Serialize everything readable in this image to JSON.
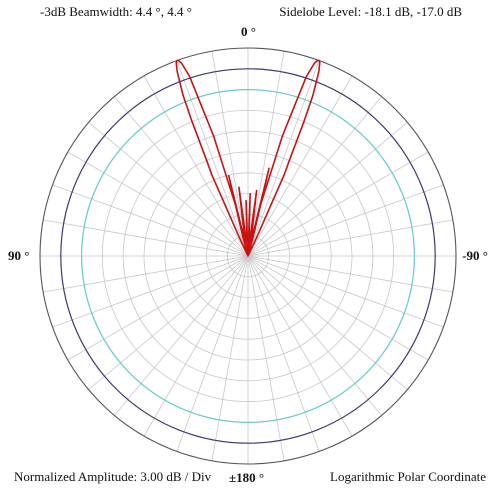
{
  "header": {
    "beamwidth": "-3dB Beamwidth: 4.4 °, 4.4 °",
    "sidelobe": "Sidelobe Level: -18.1 dB, -17.0 dB"
  },
  "footer": {
    "amplitude": "Normalized Amplitude: 3.00 dB / Div",
    "coordinate": "Logarithmic Polar Coordinate"
  },
  "angle_labels": {
    "top": "0 °",
    "left": "90 °",
    "right": "-90 °",
    "bottom": "±180 °"
  },
  "chart_data": {
    "type": "polar",
    "scale": "logarithmic",
    "angle_unit": "degrees",
    "db_per_division": 3.0,
    "radial_divisions": 10,
    "angle_step_deg": 10,
    "grid": true,
    "reference_circles": [
      {
        "level_db": -3,
        "color": "#3b3b7a"
      },
      {
        "level_db": -6,
        "color": "#66cccc"
      }
    ],
    "series": [
      {
        "color": "#cc1111",
        "points": [
          {
            "angle": -18.0,
            "db": -2.8
          },
          {
            "angle": -19.0,
            "db": -0.6
          },
          {
            "angle": -19.6,
            "db": -0.05
          },
          {
            "angle": -20.0,
            "db": 0.0
          },
          {
            "angle": -20.4,
            "db": -0.3
          },
          {
            "angle": -21.0,
            "db": -1.5
          },
          {
            "angle": -22.0,
            "db": -5.0
          },
          {
            "angle": -22.6,
            "db": -9.0
          },
          {
            "angle": -23.4,
            "db": -15.0
          },
          {
            "angle": -24.0,
            "db": -17.0
          },
          {
            "angle": -25.0,
            "db": -27.0
          },
          {
            "angle": -26.0,
            "db": -30.0
          },
          {
            "angle": -20.0,
            "db": -30.0
          },
          {
            "angle": -15.0,
            "db": -27.0
          },
          {
            "angle": -13.5,
            "db": -17.0
          },
          {
            "angle": -12.0,
            "db": -28.0
          },
          {
            "angle": -9.0,
            "db": -26.0
          },
          {
            "angle": -7.5,
            "db": -20.5
          },
          {
            "angle": -6.0,
            "db": -28.0
          },
          {
            "angle": -3.0,
            "db": -27.0
          },
          {
            "angle": -2.0,
            "db": -21.0
          },
          {
            "angle": -1.0,
            "db": -30.0
          },
          {
            "angle": 0.0,
            "db": -30.0
          },
          {
            "angle": 1.0,
            "db": -30.0
          },
          {
            "angle": 2.0,
            "db": -22.0
          },
          {
            "angle": 3.0,
            "db": -27.0
          },
          {
            "angle": 6.0,
            "db": -28.0
          },
          {
            "angle": 7.5,
            "db": -20.0
          },
          {
            "angle": 9.0,
            "db": -26.0
          },
          {
            "angle": 12.0,
            "db": -28.0
          },
          {
            "angle": 13.5,
            "db": -18.1
          },
          {
            "angle": 15.0,
            "db": -27.0
          },
          {
            "angle": 20.0,
            "db": -30.0
          },
          {
            "angle": 26.0,
            "db": -30.0
          },
          {
            "angle": 25.0,
            "db": -27.0
          },
          {
            "angle": 24.0,
            "db": -17.0
          },
          {
            "angle": 23.4,
            "db": -15.0
          },
          {
            "angle": 22.6,
            "db": -9.0
          },
          {
            "angle": 22.0,
            "db": -5.0
          },
          {
            "angle": 21.0,
            "db": -1.5
          },
          {
            "angle": 20.4,
            "db": -0.3
          },
          {
            "angle": 20.0,
            "db": 0.0
          },
          {
            "angle": 19.6,
            "db": -0.05
          },
          {
            "angle": 19.0,
            "db": -0.6
          },
          {
            "angle": 18.0,
            "db": -2.8
          },
          {
            "angle": 16.0,
            "db": -12.0
          },
          {
            "angle": 14.0,
            "db": -22.0
          },
          {
            "angle": 10.0,
            "db": -28.0
          },
          {
            "angle": 0.0,
            "db": -30.0
          },
          {
            "angle": -10.0,
            "db": -28.0
          },
          {
            "angle": -14.0,
            "db": -22.0
          },
          {
            "angle": -16.0,
            "db": -12.0
          },
          {
            "angle": -18.0,
            "db": -2.8
          }
        ]
      }
    ]
  }
}
